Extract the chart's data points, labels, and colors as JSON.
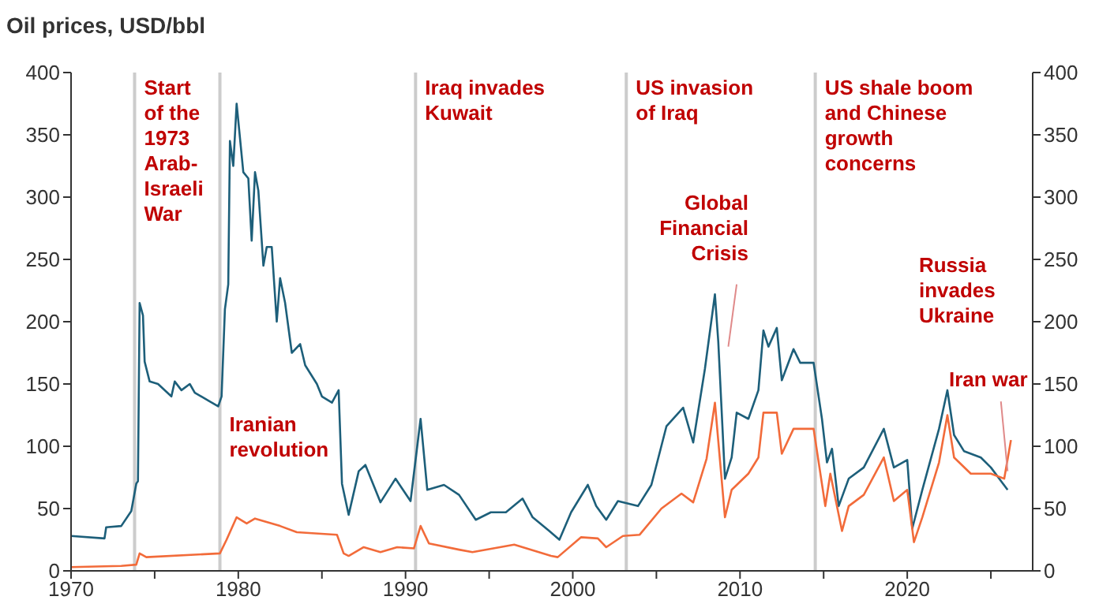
{
  "chart_data": {
    "type": "line",
    "title": "Oil prices, USD/bbl",
    "xlim": [
      1970,
      2027.5
    ],
    "xticks": [
      1970,
      {
        "value": 1975,
        "label": null
      },
      1980,
      {
        "value": 1985,
        "label": null
      },
      1990,
      {
        "value": 1995,
        "label": null
      },
      2000,
      {
        "value": 2005,
        "label": null
      },
      2010,
      {
        "value": 2015,
        "label": null
      },
      2020,
      {
        "value": 2025,
        "label": null
      }
    ],
    "ylim": [
      0,
      400
    ],
    "yticks": [
      0,
      50,
      100,
      150,
      200,
      250,
      300,
      350,
      400
    ],
    "y2lim": [
      0,
      400
    ],
    "y2ticks": [
      0,
      50,
      100,
      150,
      200,
      250,
      300,
      350,
      400
    ],
    "marker": "none",
    "line_style": "solid",
    "series": [
      {
        "color": "#1d5f7a",
        "x": [
          1970.0,
          1972.0,
          1972.1,
          1973.0,
          1973.6,
          1973.9,
          1974.0,
          1974.1,
          1974.3,
          1974.4,
          1974.7,
          1975.2,
          1976.0,
          1976.2,
          1976.6,
          1977.1,
          1977.4,
          1978.8,
          1979.0,
          1979.2,
          1979.4,
          1979.5,
          1979.7,
          1979.9,
          1980.3,
          1980.6,
          1980.8,
          1981.0,
          1981.2,
          1981.5,
          1981.7,
          1982.0,
          1982.3,
          1982.5,
          1982.8,
          1983.2,
          1983.7,
          1984.0,
          1984.7,
          1985.0,
          1985.6,
          1986.0,
          1986.2,
          1986.6,
          1987.2,
          1987.6,
          1988.5,
          1989.4,
          1990.3,
          1990.9,
          1991.3,
          1992.3,
          1993.2,
          1994.2,
          1995.1,
          1996.0,
          1997.0,
          1997.6,
          1998.6,
          1999.2,
          1999.9,
          2000.9,
          2001.4,
          2002.0,
          2002.7,
          2003.9,
          2004.7,
          2005.6,
          2006.6,
          2007.2,
          2007.9,
          2008.5,
          2008.7,
          2009.1,
          2009.5,
          2009.8,
          2010.5,
          2011.1,
          2011.4,
          2011.7,
          2012.2,
          2012.5,
          2013.2,
          2013.6,
          2014.4,
          2014.9,
          2015.2,
          2015.5,
          2015.9,
          2016.5,
          2017.4,
          2018.6,
          2019.2,
          2020.0,
          2020.3,
          2020.9,
          2021.9,
          2022.4,
          2022.8,
          2023.4,
          2024.4,
          2025.0,
          2026.0
        ],
        "values": [
          28,
          26,
          35,
          36,
          48,
          70,
          72,
          215,
          205,
          168,
          152,
          150,
          140,
          152,
          145,
          150,
          143,
          132,
          140,
          210,
          230,
          345,
          325,
          375,
          320,
          315,
          265,
          320,
          305,
          245,
          260,
          260,
          200,
          235,
          215,
          175,
          182,
          165,
          150,
          140,
          135,
          145,
          70,
          45,
          80,
          85,
          55,
          74,
          56,
          122,
          65,
          69,
          61,
          41,
          47,
          47,
          58,
          43,
          32,
          25,
          47,
          69,
          52,
          41,
          56,
          52,
          69,
          116,
          131,
          103,
          162,
          222,
          184,
          74,
          91,
          127,
          122,
          145,
          193,
          180,
          195,
          153,
          178,
          167,
          167,
          122,
          87,
          98,
          52,
          74,
          83,
          114,
          83,
          89,
          34,
          65,
          114,
          145,
          109,
          96,
          91,
          83,
          65
        ]
      },
      {
        "color": "#f26b3a",
        "x": [
          1970.0,
          1973.0,
          1973.9,
          1974.1,
          1974.5,
          1978.9,
          1979.3,
          1979.9,
          1980.5,
          1981.0,
          1982.5,
          1983.5,
          1985.9,
          1986.3,
          1986.6,
          1987.5,
          1988.5,
          1989.5,
          1990.5,
          1990.9,
          1991.4,
          1993.2,
          1994.0,
          1996.5,
          1998.7,
          1999.1,
          2000.5,
          2001.5,
          2002.0,
          2003.0,
          2004.0,
          2005.3,
          2006.5,
          2007.2,
          2008.0,
          2008.5,
          2009.1,
          2009.5,
          2010.5,
          2011.1,
          2011.4,
          2012.2,
          2012.5,
          2013.2,
          2014.4,
          2015.1,
          2015.4,
          2016.1,
          2016.5,
          2017.4,
          2018.6,
          2019.2,
          2020.0,
          2020.4,
          2020.9,
          2021.9,
          2022.4,
          2022.8,
          2023.8,
          2025.0,
          2025.8,
          2026.2
        ],
        "values": [
          3,
          4,
          5,
          14,
          11,
          14,
          25,
          43,
          38,
          42,
          36,
          31,
          29,
          14,
          12,
          19,
          15,
          19,
          18,
          36,
          22,
          17,
          15,
          21,
          12,
          11,
          27,
          26,
          19,
          28,
          29,
          50,
          62,
          55,
          90,
          135,
          43,
          65,
          78,
          91,
          127,
          127,
          94,
          114,
          114,
          52,
          78,
          32,
          52,
          61,
          91,
          56,
          65,
          23,
          43,
          87,
          125,
          91,
          78,
          78,
          74,
          105
        ]
      }
    ],
    "ref_lines": [
      {
        "axis": "x",
        "value": 1973.8,
        "label": "Start of the 1973 Arab-Israeli War",
        "color": "#cccccc"
      },
      {
        "axis": "x",
        "value": 1978.9,
        "label": "Iranian revolution",
        "color": "#cccccc"
      },
      {
        "axis": "x",
        "value": 1990.6,
        "label": "Iraq invades Kuwait",
        "color": "#cccccc"
      },
      {
        "axis": "x",
        "value": 2003.2,
        "label": "US invasion of Iraq",
        "color": "#cccccc"
      },
      {
        "axis": "x",
        "value": 2014.5,
        "label": "US shale boom and Chinese growth concerns",
        "color": "#cccccc"
      }
    ],
    "annotations": [
      "Global Financial Crisis",
      "Russia invades Ukraine",
      {
        "text": "Iran war",
        "x": 2026,
        "y": 80
      }
    ]
  }
}
